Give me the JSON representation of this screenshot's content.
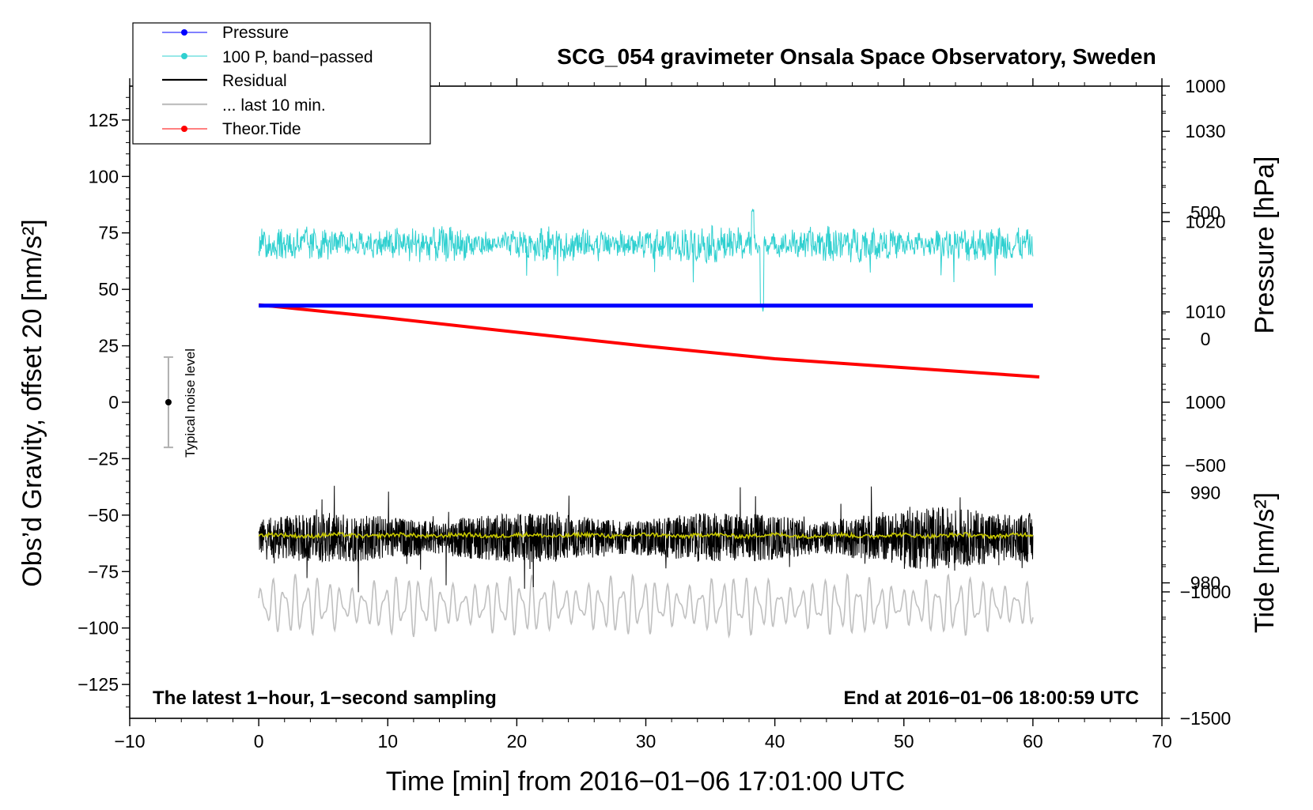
{
  "chart_data": {
    "type": "line",
    "title": "SCG_054 gravimeter Onsala Space Observatory, Sweden",
    "xlabel": "Time [min] from 2016−01−06 17:01:00 UTC",
    "ylabel_left": "Obs’d Gravity, offset 20 [nm/s²]",
    "ylabel_right_top": "Pressure [hPa]",
    "ylabel_right_bottom": "Tide [nm/s²]",
    "xlim": [
      -10,
      70
    ],
    "ylim_left": [
      -140,
      140
    ],
    "ylim_pressure": [
      965,
      1035
    ],
    "ylim_tide": [
      -1500,
      1000
    ],
    "x_ticks": [
      -10,
      0,
      10,
      20,
      30,
      40,
      50,
      60,
      70
    ],
    "x_tick_labels": [
      "−10",
      "0",
      "10",
      "20",
      "30",
      "40",
      "50",
      "60",
      "70"
    ],
    "y_left_ticks": [
      125,
      100,
      75,
      50,
      25,
      0,
      -25,
      -50,
      -75,
      -100,
      -125
    ],
    "y_left_tick_labels": [
      "125",
      "100",
      "75",
      "50",
      "25",
      "0",
      "−25",
      "−50",
      "−75",
      "−100",
      "−125"
    ],
    "y_pressure_ticks": [
      1030,
      1020,
      1010,
      1000,
      990,
      980
    ],
    "y_pressure_tick_labels": [
      "1030",
      "1020",
      "1010",
      "1000",
      "990",
      "980"
    ],
    "y_tide_ticks": [
      1000,
      500,
      0,
      -500,
      -1000,
      -1500
    ],
    "y_tide_tick_labels": [
      "1000",
      "500",
      "0",
      "−500",
      "−1000",
      "−1500"
    ],
    "legend": {
      "position": "top-left",
      "entries": [
        {
          "label": "Pressure",
          "color": "#0000ff",
          "marker": true
        },
        {
          "label": "100 P, band−passed",
          "color": "#30d0d0",
          "marker": true
        },
        {
          "label": "Residual",
          "color": "#000000",
          "marker": false
        },
        {
          "label": "... last 10 min.",
          "color": "#c0c0c0",
          "marker": false
        },
        {
          "label": "Theor.Tide",
          "color": "#ff0000",
          "marker": true
        }
      ]
    },
    "series": [
      {
        "name": "Pressure",
        "axis": "pressure",
        "color": "#0000ff",
        "x_range": [
          0,
          60
        ],
        "level_hpa": 1010.7
      },
      {
        "name": "100 P, band−passed",
        "axis": "left",
        "color": "#30d0d0",
        "x_range": [
          0,
          60
        ],
        "mean": 70,
        "min": 40,
        "max": 86
      },
      {
        "name": "Residual",
        "axis": "left",
        "color": "#000000",
        "x_range": [
          0,
          60
        ],
        "mean": -60,
        "min": -88,
        "max": -32
      },
      {
        "name": "Residual smoothed",
        "axis": "left",
        "color": "#c8c800",
        "x_range": [
          0,
          60
        ],
        "mean": -59
      },
      {
        "name": "... last 10 min.",
        "axis": "left",
        "color": "#c0c0c0",
        "x_range": [
          0,
          60
        ],
        "mean": -90,
        "min": -108,
        "max": -74
      },
      {
        "name": "Theor.Tide",
        "axis": "tide",
        "color": "#ff0000",
        "x": [
          0,
          10,
          20,
          30,
          40,
          50,
          60.5
        ],
        "values": [
          135,
          83,
          27,
          -28,
          -78,
          -113,
          -150
        ]
      }
    ],
    "noise_indicator": {
      "label": "Typical noise level",
      "x": -7,
      "center": 0,
      "low": -20,
      "high": 20
    },
    "annotations": {
      "bottom_left": "The latest 1−hour, 1−second sampling",
      "bottom_right": "End at 2016−01−06 18:00:59 UTC"
    }
  }
}
